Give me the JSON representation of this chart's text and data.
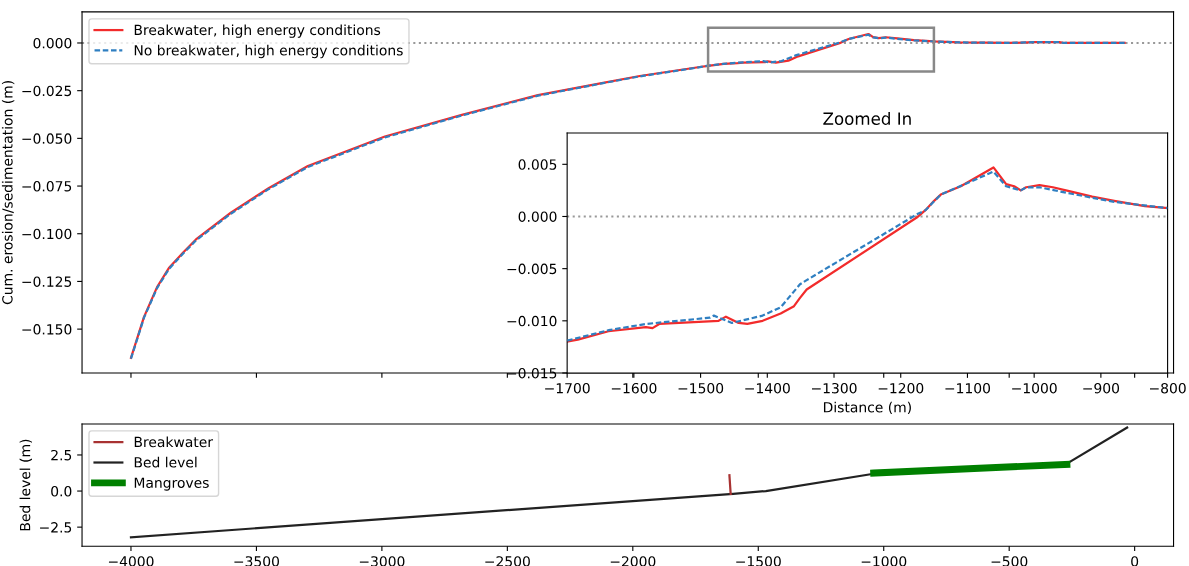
{
  "chart_data": [
    {
      "type": "line",
      "ylabel": "Cum. erosion/sedimentation (m)",
      "xlim": [
        -4195,
        155
      ],
      "ylim": [
        -0.173,
        0.0163
      ],
      "xticks": [
        {
          "value": -4000,
          "label": null
        },
        {
          "value": -3500,
          "label": null
        },
        {
          "value": -3000,
          "label": null
        },
        {
          "value": -2500,
          "label": null
        },
        {
          "value": -2000,
          "label": null
        },
        {
          "value": -1500,
          "label": null
        },
        {
          "value": -1000,
          "label": null
        },
        {
          "value": -500,
          "label": null
        },
        {
          "value": 0,
          "label": null
        }
      ],
      "yticks": [
        {
          "value": 0,
          "label": "0.000"
        },
        {
          "value": -0.025,
          "label": "−0.025"
        },
        {
          "value": -0.05,
          "label": "−0.050"
        },
        {
          "value": -0.075,
          "label": "−0.075"
        },
        {
          "value": -0.1,
          "label": "−0.100"
        },
        {
          "value": -0.125,
          "label": "−0.125"
        },
        {
          "value": -0.15,
          "label": "−0.150"
        }
      ],
      "tick_labels": "y",
      "legend": "top left",
      "grid": false,
      "ref_lines": [
        {
          "axis": "y",
          "value": 0,
          "label": null,
          "color": "#999999",
          "line_style": "dotted"
        }
      ],
      "series": [
        {
          "name": "Breakwater, high energy conditions",
          "color": "#f22b2b",
          "line_style": "solid",
          "x": [
            -4000,
            -3948,
            -3896,
            -3849,
            -3793,
            -3741,
            -3602,
            -3450,
            -3295,
            -2988,
            -2681,
            -2378,
            -2124,
            -1972,
            -1733,
            -1700,
            -1638,
            -1582,
            -1562,
            -1473,
            -1462,
            -1430,
            -1380,
            -1341,
            -1176,
            -1140,
            -1061,
            -1042,
            -1020,
            -992,
            -946,
            -880,
            -800,
            -700,
            -500,
            -400,
            -300,
            -280,
            -40
          ],
          "values": [
            -0.165,
            -0.1436,
            -0.128,
            -0.118,
            -0.11,
            -0.103,
            -0.089,
            -0.076,
            -0.0645,
            -0.049,
            -0.0377,
            -0.0273,
            -0.021,
            -0.0173,
            -0.0126,
            -0.012,
            -0.011,
            -0.0106,
            -0.0103,
            -0.01,
            -0.0096,
            -0.0103,
            -0.0093,
            -0.007,
            -0.0001,
            0.0021,
            0.0047,
            0.0031,
            0.0025,
            0.003,
            0.0024,
            0.0015,
            0.0008,
            0.0003,
            0.0,
            0.0004,
            0.0004,
            0.0,
            0.0
          ]
        },
        {
          "name": "No breakwater, high energy conditions",
          "color": "#2f7fc1",
          "line_style": "dashed",
          "x": [
            -4000,
            -3948,
            -3896,
            -3849,
            -3793,
            -3741,
            -3602,
            -3450,
            -3295,
            -2988,
            -2681,
            -2378,
            -2124,
            -1972,
            -1733,
            -1700,
            -1638,
            -1582,
            -1480,
            -1453,
            -1407,
            -1351,
            -1341,
            -1176,
            -1140,
            -1061,
            -1042,
            -1020,
            -992,
            -946,
            -880,
            -800,
            -700,
            -500,
            -400,
            -300,
            -280,
            -40
          ],
          "values": [
            -0.1655,
            -0.144,
            -0.1285,
            -0.1185,
            -0.1105,
            -0.1035,
            -0.0895,
            -0.0765,
            -0.065,
            -0.0495,
            -0.038,
            -0.0276,
            -0.0212,
            -0.0175,
            -0.0127,
            -0.0119,
            -0.0109,
            -0.0103,
            -0.0095,
            -0.0102,
            -0.0095,
            -0.0065,
            -0.0061,
            0.0002,
            0.0021,
            0.0043,
            0.0029,
            0.0025,
            0.0028,
            0.0022,
            0.0014,
            0.0008,
            0.0003,
            0.0,
            0.0004,
            0.0004,
            0.0,
            0.0
          ]
        }
      ]
    },
    {
      "type": "line",
      "title": "Zoomed In",
      "xlabel": "Distance (m)",
      "xlim": [
        -1700,
        -800
      ],
      "ylim": [
        -0.015,
        0.008
      ],
      "xticks": [
        {
          "value": -1700,
          "label": "−1700"
        },
        {
          "value": -1600,
          "label": "−1600"
        },
        {
          "value": -1500,
          "label": "−1500"
        },
        {
          "value": -1400,
          "label": "−1400"
        },
        {
          "value": -1300,
          "label": "−1300"
        },
        {
          "value": -1200,
          "label": "−1200"
        },
        {
          "value": -1100,
          "label": "−1100"
        },
        {
          "value": -1000,
          "label": "−1000"
        },
        {
          "value": -900,
          "label": "−900"
        },
        {
          "value": -800,
          "label": "−800"
        }
      ],
      "yticks": [
        {
          "value": -0.015,
          "label": "−0.015"
        },
        {
          "value": -0.01,
          "label": "−0.010"
        },
        {
          "value": -0.005,
          "label": "−0.005"
        },
        {
          "value": 0,
          "label": "0.000"
        },
        {
          "value": 0.005,
          "label": "0.005"
        }
      ],
      "grid": false,
      "ref_lines": [
        {
          "axis": "y",
          "value": 0,
          "label": null,
          "color": "#999999",
          "line_style": "dotted"
        }
      ],
      "series": [
        {
          "color": "#f22b2b",
          "line_style": "solid",
          "x": [
            -1700,
            -1684,
            -1638,
            -1582,
            -1572,
            -1562,
            -1473,
            -1462,
            -1443,
            -1430,
            -1407,
            -1380,
            -1360,
            -1351,
            -1341,
            -1176,
            -1163,
            -1150,
            -1140,
            -1110,
            -1061,
            -1042,
            -1030,
            -1020,
            -1012,
            -992,
            -972,
            -946,
            -913,
            -880,
            -834,
            -800
          ],
          "values": [
            -0.012,
            -0.0118,
            -0.011,
            -0.0106,
            -0.0107,
            -0.0103,
            -0.01,
            -0.0096,
            -0.0102,
            -0.0103,
            -0.01,
            -0.0093,
            -0.0086,
            -0.0078,
            -0.007,
            -0.0001,
            0.0006,
            0.0015,
            0.0021,
            0.0029,
            0.0047,
            0.0031,
            0.0029,
            0.0025,
            0.0028,
            0.003,
            0.0028,
            0.0024,
            0.0019,
            0.0015,
            0.001,
            0.0008
          ]
        },
        {
          "color": "#2f7fc1",
          "line_style": "dashed",
          "x": [
            -1700,
            -1638,
            -1582,
            -1486,
            -1480,
            -1453,
            -1407,
            -1380,
            -1351,
            -1341,
            -1176,
            -1163,
            -1140,
            -1061,
            -1042,
            -1020,
            -1012,
            -992,
            -946,
            -880,
            -800
          ],
          "values": [
            -0.0119,
            -0.0109,
            -0.0103,
            -0.0097,
            -0.0095,
            -0.0102,
            -0.0095,
            -0.0087,
            -0.0065,
            -0.0061,
            0.0002,
            0.0006,
            0.0021,
            0.0043,
            0.0029,
            0.0025,
            0.0028,
            0.0028,
            0.0022,
            0.0014,
            0.0008
          ]
        }
      ]
    },
    {
      "type": "line",
      "ylabel": "Bed level (m)",
      "xlim": [
        -4195,
        155
      ],
      "ylim": [
        -3.82,
        4.65
      ],
      "xticks": [
        {
          "value": -4000,
          "label": "−4000"
        },
        {
          "value": -3500,
          "label": "−3500"
        },
        {
          "value": -3000,
          "label": "−3000"
        },
        {
          "value": -2500,
          "label": "−2500"
        },
        {
          "value": -2000,
          "label": "−2000"
        },
        {
          "value": -1500,
          "label": "−1500"
        },
        {
          "value": -1000,
          "label": "−1000"
        },
        {
          "value": -500,
          "label": "−500"
        },
        {
          "value": 0,
          "label": "0"
        }
      ],
      "yticks": [
        {
          "value": -2.5,
          "label": "−2.5"
        },
        {
          "value": 0,
          "label": "0.0"
        },
        {
          "value": 2.5,
          "label": "2.5"
        }
      ],
      "legend": "top left",
      "grid": false,
      "series": [
        {
          "name": "Breakwater",
          "color": "#a83232",
          "line_style": "solid",
          "x": [
            -1610,
            -1615
          ],
          "values": [
            -0.2,
            1.1
          ]
        },
        {
          "name": "Bed level",
          "color": "#222222",
          "line_style": "solid",
          "x": [
            -4000,
            -1600,
            -1470,
            -1040,
            -270,
            -30
          ],
          "values": [
            -3.2,
            -0.2,
            0.0,
            1.2,
            1.9,
            4.4
          ]
        },
        {
          "name": "Mangroves",
          "color": "#008000",
          "line_style": "solid",
          "x": [
            -1040,
            -270
          ],
          "values": [
            1.25,
            1.85
          ]
        }
      ]
    }
  ]
}
